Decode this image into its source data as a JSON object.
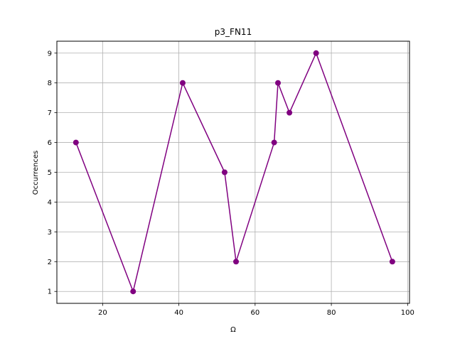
{
  "chart_data": {
    "type": "line",
    "title": "p3_FN11",
    "xlabel": "Ω",
    "ylabel": "Occurrences",
    "xlim": [
      8,
      100.5
    ],
    "ylim": [
      0.6,
      9.4
    ],
    "xticks": [
      20,
      40,
      60,
      80,
      100
    ],
    "yticks": [
      1,
      2,
      3,
      4,
      5,
      6,
      7,
      8,
      9
    ],
    "grid": true,
    "series": [
      {
        "color": "#800080",
        "marker": "circle",
        "x": [
          13,
          28,
          41,
          52,
          55,
          65,
          66,
          69,
          76,
          96
        ],
        "y": [
          6,
          1,
          8,
          5,
          2,
          6,
          8,
          7,
          9,
          2
        ]
      }
    ]
  }
}
